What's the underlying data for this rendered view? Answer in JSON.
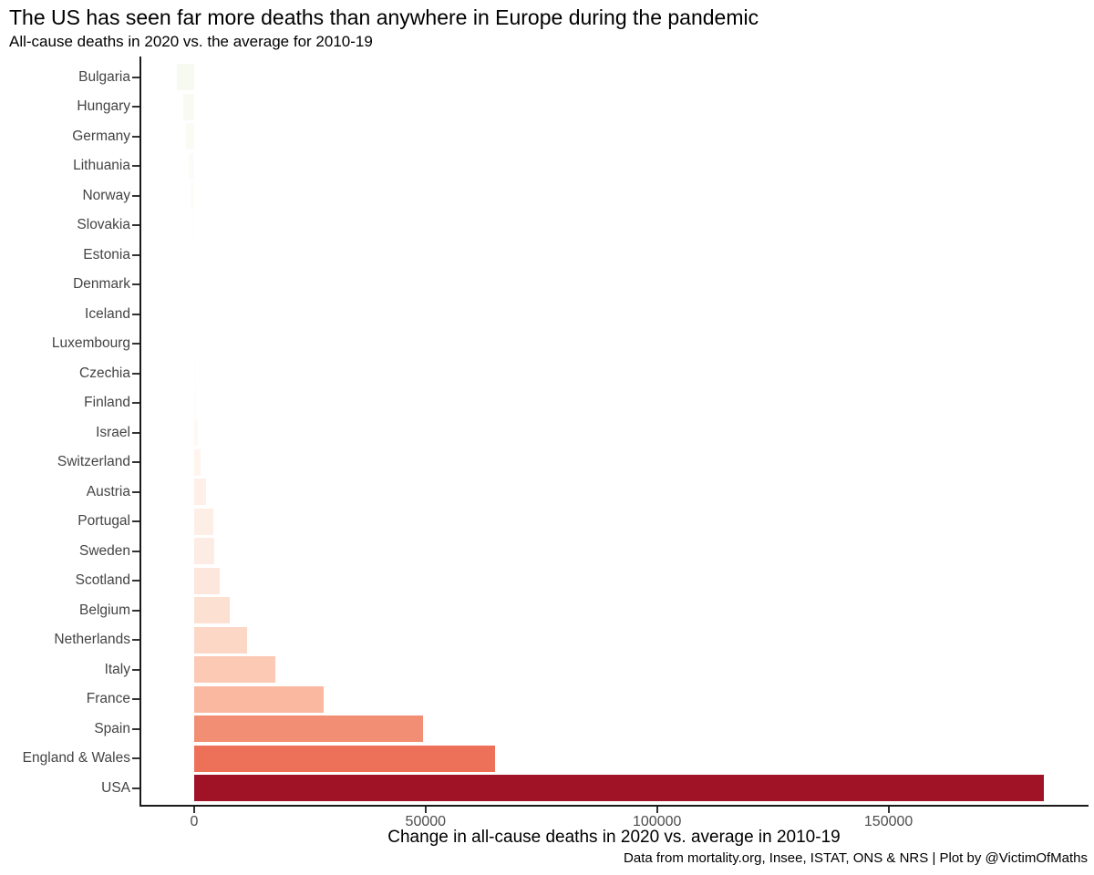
{
  "chart_data": {
    "type": "bar",
    "orientation": "horizontal",
    "title": "The US has seen far more deaths than anywhere in Europe during the pandemic",
    "subtitle": "All-cause deaths in 2020 vs. the average for 2010-19",
    "xlabel": "Change in all-cause deaths in 2020 vs. average in 2010-19",
    "caption": "Data from mortality.org, Insee, ISTAT, ONS & NRS | Plot by @VictimOfMaths",
    "categories": [
      "Bulgaria",
      "Hungary",
      "Germany",
      "Lithuania",
      "Norway",
      "Slovakia",
      "Estonia",
      "Denmark",
      "Iceland",
      "Luxembourg",
      "Czechia",
      "Finland",
      "Israel",
      "Switzerland",
      "Austria",
      "Portugal",
      "Sweden",
      "Scotland",
      "Belgium",
      "Netherlands",
      "Italy",
      "France",
      "Spain",
      "England & Wales",
      "USA"
    ],
    "values": [
      -3700,
      -2400,
      -1800,
      -1100,
      -700,
      -450,
      -280,
      -160,
      -80,
      -25,
      200,
      500,
      900,
      1400,
      2500,
      4200,
      4300,
      5500,
      7700,
      11500,
      17600,
      27900,
      49400,
      65000,
      183500
    ],
    "bar_colors": [
      "#f7faf0",
      "#f9fbf2",
      "#fafbf4",
      "#fbfcf7",
      "#fcfdf9",
      "#fdfdfb",
      "#fefefc",
      "#fefefd",
      "#fffffe",
      "#fffefe",
      "#fffdfc",
      "#fffbf8",
      "#fff8f4",
      "#fff4ee",
      "#fef0e8",
      "#fdeee6",
      "#fdece3",
      "#fde7dc",
      "#fce0d2",
      "#fcd7c6",
      "#fcc9b4",
      "#fbb8a0",
      "#f28e74",
      "#ec7158",
      "#a01226"
    ],
    "x_ticks": [
      0,
      50000,
      100000,
      150000
    ],
    "x_tick_labels": [
      "0",
      "50000",
      "100000",
      "150000"
    ],
    "xlim": [
      -11800,
      193200
    ],
    "grid": false,
    "legend": "none",
    "value_order": "ascending from top to bottom",
    "colors": {
      "max_bar": "#a01226",
      "axis_line": "#1a1a1a",
      "tick_mark": "#333333",
      "tick_label": "#4d4d4d",
      "category_label": "#444444",
      "background": "#ffffff",
      "title_text": "#000000"
    }
  }
}
